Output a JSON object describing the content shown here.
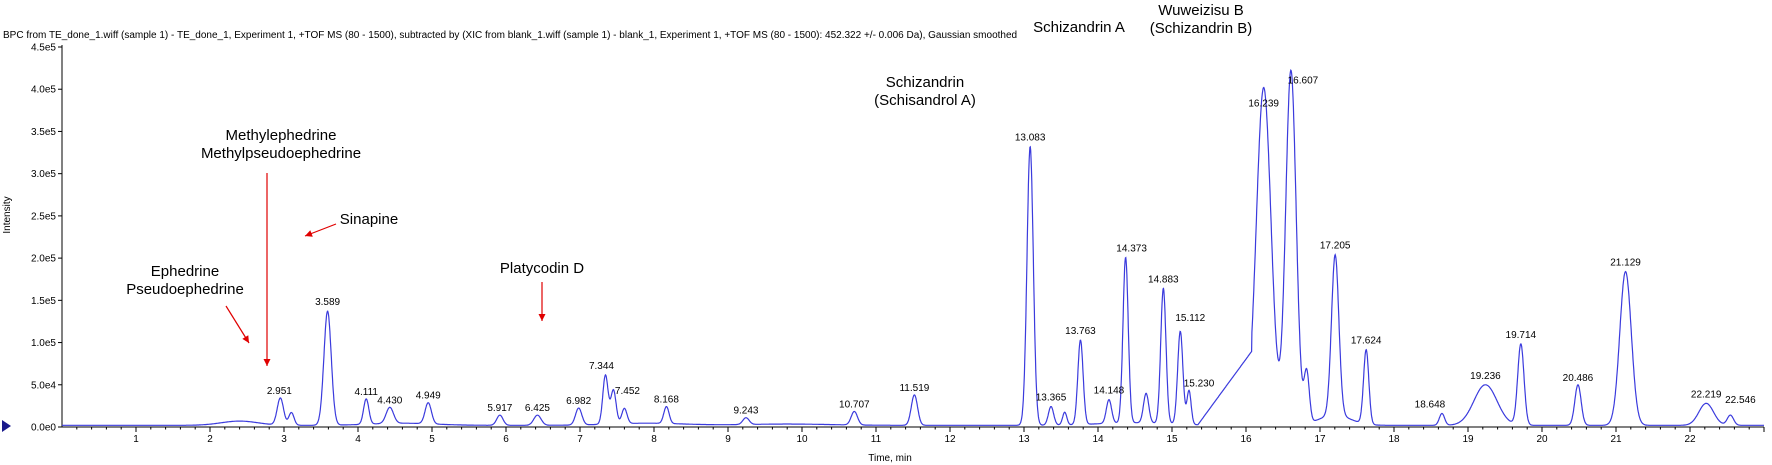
{
  "chart_data": {
    "type": "line",
    "title": "BPC from TE_done_1.wiff (sample 1) - TE_done_1, Experiment 1, +TOF MS (80 - 1500), subtracted by (XIC from blank_1.wiff (sample 1) - blank_1, Experiment 1, +TOF MS (80 - 1500): 452.322 +/- 0.006 Da), Gaussian smoothed",
    "xlabel": "Time, min",
    "ylabel": "Intensity",
    "xlim": [
      0,
      23.0
    ],
    "ylim": [
      0,
      450000
    ],
    "x_ticks": [
      1,
      2,
      3,
      4,
      5,
      6,
      7,
      8,
      9,
      10,
      11,
      12,
      13,
      14,
      15,
      16,
      17,
      18,
      19,
      20,
      21,
      22
    ],
    "y_ticks": [
      {
        "value": 0,
        "label": "0.0e0"
      },
      {
        "value": 50000,
        "label": "5.0e4"
      },
      {
        "value": 100000,
        "label": "1.0e5"
      },
      {
        "value": 150000,
        "label": "1.5e5"
      },
      {
        "value": 200000,
        "label": "2.0e5"
      },
      {
        "value": 250000,
        "label": "2.5e5"
      },
      {
        "value": 300000,
        "label": "3.0e5"
      },
      {
        "value": 350000,
        "label": "3.5e5"
      },
      {
        "value": 400000,
        "label": "4.0e5"
      },
      {
        "value": 450000,
        "label": "4.5e5"
      }
    ],
    "line_color": "#3b3bdd",
    "annotation_color": "#e00000",
    "peaks": [
      {
        "rt": 2.951,
        "label": "2.951",
        "height": 32000,
        "width": 0.06
      },
      {
        "rt": 3.1,
        "label": "",
        "height": 15000,
        "width": 0.05
      },
      {
        "rt": 3.589,
        "label": "3.589",
        "height": 135000,
        "width": 0.07
      },
      {
        "rt": 4.111,
        "label": "4.111",
        "height": 30000,
        "width": 0.05
      },
      {
        "rt": 4.43,
        "label": "4.430",
        "height": 19000,
        "width": 0.07
      },
      {
        "rt": 4.949,
        "label": "4.949",
        "height": 25000,
        "width": 0.06
      },
      {
        "rt": 5.917,
        "label": "5.917",
        "height": 12000,
        "width": 0.06
      },
      {
        "rt": 6.425,
        "label": "6.425",
        "height": 12000,
        "width": 0.07
      },
      {
        "rt": 6.982,
        "label": "6.982",
        "height": 20000,
        "width": 0.06
      },
      {
        "rt": 7.344,
        "label": "7.344",
        "height": 58000,
        "width": 0.05
      },
      {
        "rt": 7.452,
        "label": "7.452",
        "height": 40000,
        "width": 0.05
      },
      {
        "rt": 7.6,
        "label": "",
        "height": 18000,
        "width": 0.05
      },
      {
        "rt": 8.168,
        "label": "8.168",
        "height": 20000,
        "width": 0.05
      },
      {
        "rt": 9.243,
        "label": "9.243",
        "height": 8000,
        "width": 0.06
      },
      {
        "rt": 10.707,
        "label": "10.707",
        "height": 16000,
        "width": 0.06
      },
      {
        "rt": 11.519,
        "label": "11.519",
        "height": 36000,
        "width": 0.06
      },
      {
        "rt": 13.083,
        "label": "13.083",
        "height": 330000,
        "width": 0.06
      },
      {
        "rt": 13.365,
        "label": "13.365",
        "height": 22000,
        "width": 0.05
      },
      {
        "rt": 13.55,
        "label": "",
        "height": 15000,
        "width": 0.04
      },
      {
        "rt": 13.763,
        "label": "13.763",
        "height": 100000,
        "width": 0.05
      },
      {
        "rt": 14.148,
        "label": "14.148",
        "height": 28000,
        "width": 0.05
      },
      {
        "rt": 14.373,
        "label": "14.373",
        "height": 196000,
        "width": 0.05
      },
      {
        "rt": 14.65,
        "label": "",
        "height": 35000,
        "width": 0.05
      },
      {
        "rt": 14.883,
        "label": "14.883",
        "height": 160000,
        "width": 0.05
      },
      {
        "rt": 15.112,
        "label": "15.112",
        "height": 110000,
        "width": 0.05
      },
      {
        "rt": 15.23,
        "label": "15.230",
        "height": 40000,
        "width": 0.04
      },
      {
        "rt": 16.239,
        "label": "16.239",
        "height": 400000,
        "width": 0.14
      },
      {
        "rt": 16.607,
        "label": "16.607",
        "height": 420000,
        "width": 0.1
      },
      {
        "rt": 16.82,
        "label": "",
        "height": 60000,
        "width": 0.05
      },
      {
        "rt": 17.205,
        "label": "17.205",
        "height": 190000,
        "width": 0.07
      },
      {
        "rt": 17.624,
        "label": "17.624",
        "height": 88000,
        "width": 0.05
      },
      {
        "rt": 18.648,
        "label": "18.648",
        "height": 14000,
        "width": 0.05
      },
      {
        "rt": 19.236,
        "label": "19.236",
        "height": 48000,
        "width": 0.22
      },
      {
        "rt": 19.714,
        "label": "19.714",
        "height": 96000,
        "width": 0.06
      },
      {
        "rt": 20.486,
        "label": "20.486",
        "height": 48000,
        "width": 0.06
      },
      {
        "rt": 21.129,
        "label": "21.129",
        "height": 182000,
        "width": 0.11
      },
      {
        "rt": 22.219,
        "label": "22.219",
        "height": 26000,
        "width": 0.14
      },
      {
        "rt": 22.546,
        "label": "22.546",
        "height": 12000,
        "width": 0.06
      }
    ],
    "annotations": [
      {
        "name": "ephedrine",
        "lines": [
          "Ephedrine",
          "Pseudoephedrine"
        ]
      },
      {
        "name": "methylephedrine",
        "lines": [
          "Methylephedrine",
          "Methylpseudoephedrine"
        ]
      },
      {
        "name": "sinapine",
        "lines": [
          "Sinapine"
        ]
      },
      {
        "name": "platycodin",
        "lines": [
          "Platycodin D"
        ]
      },
      {
        "name": "schizandrin",
        "lines": [
          "Schizandrin",
          "(Schisandrol A)"
        ]
      },
      {
        "name": "schizandrin-a",
        "lines": [
          "Schizandrin A"
        ]
      },
      {
        "name": "wuweizisu",
        "lines": [
          "Wuweizisu B",
          "(Schizandrin B)"
        ]
      }
    ]
  }
}
